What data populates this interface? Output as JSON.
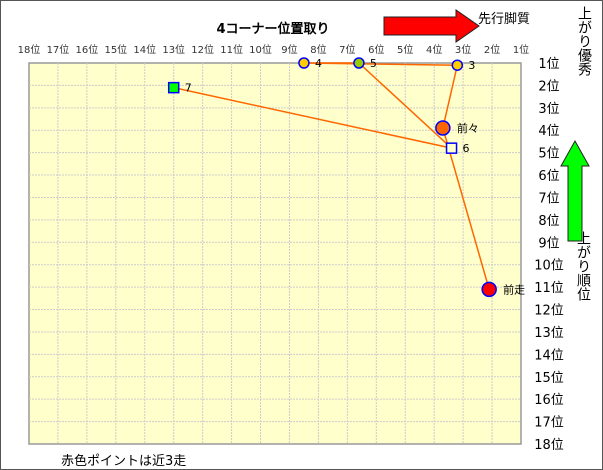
{
  "chart_data": {
    "type": "scatter",
    "title": "4コーナー位置取り",
    "xlabel": "",
    "ylabel": "上がり順位",
    "x_ticks": [
      "18位",
      "17位",
      "16位",
      "15位",
      "14位",
      "13位",
      "12位",
      "11位",
      "10位",
      "9位",
      "8位",
      "7位",
      "6位",
      "5位",
      "4位",
      "3位",
      "2位",
      "1位"
    ],
    "y_ticks": [
      "1位",
      "2位",
      "3位",
      "4位",
      "5位",
      "6位",
      "7位",
      "8位",
      "9位",
      "10位",
      "11位",
      "12位",
      "13位",
      "14位",
      "15位",
      "16位",
      "17位",
      "18位"
    ],
    "xlim": [
      18,
      1
    ],
    "ylim": [
      1,
      18
    ],
    "grid": true,
    "plot_background": "#FFFFCC",
    "line_color": "#FF6600",
    "points": [
      {
        "label": "7",
        "x": 13.0,
        "y": 2.1,
        "shape": "square",
        "color": "#00FF00"
      },
      {
        "label": "6",
        "x": 3.4,
        "y": 4.8,
        "shape": "square",
        "color": "#FFFFCC"
      },
      {
        "label": "5",
        "x": 6.6,
        "y": 1.0,
        "shape": "circle",
        "color": "#99CC00"
      },
      {
        "label": "4",
        "x": 8.5,
        "y": 1.0,
        "shape": "circle",
        "color": "#FFCC00"
      },
      {
        "label": "3",
        "x": 3.2,
        "y": 1.1,
        "shape": "circle",
        "color": "#FFCC00"
      },
      {
        "label": "前々",
        "x": 3.7,
        "y": 3.9,
        "shape": "circle-large",
        "color": "#FF6600"
      },
      {
        "label": "前走",
        "x": 2.1,
        "y": 11.1,
        "shape": "circle-large",
        "color": "#FF0000"
      }
    ],
    "annotations": {
      "right_arrow_label": "先行脚質",
      "up_arrow_label": "上がり優秀",
      "footnote": "赤色ポイントは近3走"
    }
  }
}
